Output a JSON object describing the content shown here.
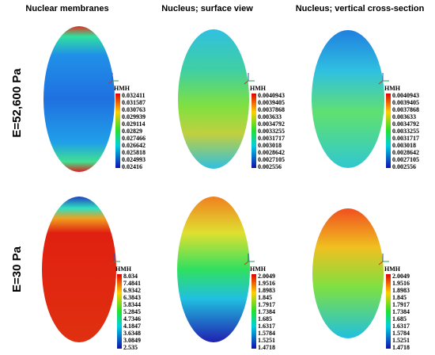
{
  "columns": [
    "Nuclear membranes",
    "Nucleus; surface view",
    "Nucleus; vertical cross-section"
  ],
  "rows": [
    "E=52,600 Pa",
    "E=30  Pa"
  ],
  "panels": [
    {
      "label": "HMH",
      "ticks": [
        "0.032411",
        "0.031587",
        "0.030763",
        "0.029939",
        "0.029114",
        "0.02829",
        "0.027466",
        "0.026642",
        "0.025818",
        "0.024993",
        "0.02416"
      ]
    },
    {
      "label": "HMH",
      "ticks": [
        "0.0040943",
        "0.0039405",
        "0.0037868",
        "0.003633",
        "0.0034792",
        "0.0033255",
        "0.0031717",
        "0.003018",
        "0.0028642",
        "0.0027105",
        "0.002556"
      ]
    },
    {
      "label": "HMH",
      "ticks": [
        "0.0040943",
        "0.0039405",
        "0.0037868",
        "0.003633",
        "0.0034792",
        "0.0033255",
        "0.0031717",
        "0.003018",
        "0.0028642",
        "0.0027105",
        "0.002556"
      ]
    },
    {
      "label": "HMH",
      "ticks": [
        "8.034",
        "7.4841",
        "6.9342",
        "6.3843",
        "5.8344",
        "5.2845",
        "4.7346",
        "4.1847",
        "3.6348",
        "3.0849",
        "2.535"
      ]
    },
    {
      "label": "HMH",
      "ticks": [
        "2.0049",
        "1.9516",
        "1.8983",
        "1.845",
        "1.7917",
        "1.7384",
        "1.685",
        "1.6317",
        "1.5784",
        "1.5251",
        "1.4718"
      ]
    },
    {
      "label": "HMH",
      "ticks": [
        "2.0049",
        "1.9516",
        "1.8983",
        "1.845",
        "1.7917",
        "1.7384",
        "1.685",
        "1.6317",
        "1.5784",
        "1.5251",
        "1.4718"
      ]
    }
  ]
}
